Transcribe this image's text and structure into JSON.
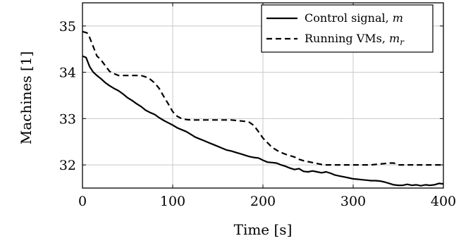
{
  "chart_data": {
    "type": "line",
    "title": "",
    "xlabel": "Time [s]",
    "ylabel": "Machines [1]",
    "xlim": [
      0,
      400
    ],
    "ylim": [
      31.5,
      35.5
    ],
    "xticks": [
      0,
      100,
      200,
      300,
      400
    ],
    "xtick_labels": [
      "0",
      "100",
      "200",
      "300",
      "400"
    ],
    "yticks": [
      32,
      33,
      34,
      35
    ],
    "ytick_labels": [
      "32",
      "33",
      "34",
      "35"
    ],
    "grid": true,
    "legend_position": "top-right",
    "series": [
      {
        "name": "Control signal, m",
        "legend_prefix": "Control signal, ",
        "legend_symbol": "m",
        "legend_subscript": "",
        "style": "solid",
        "color": "#000000",
        "x": [
          0,
          4,
          8,
          12,
          16,
          20,
          25,
          30,
          35,
          40,
          45,
          50,
          55,
          60,
          65,
          70,
          75,
          80,
          85,
          90,
          95,
          100,
          105,
          110,
          115,
          120,
          125,
          130,
          135,
          140,
          145,
          150,
          155,
          160,
          165,
          170,
          175,
          180,
          185,
          190,
          195,
          200,
          205,
          210,
          215,
          220,
          225,
          230,
          235,
          240,
          245,
          250,
          255,
          260,
          265,
          270,
          275,
          280,
          285,
          290,
          295,
          300,
          305,
          310,
          315,
          320,
          325,
          330,
          335,
          340,
          345,
          350,
          355,
          360,
          365,
          370,
          375,
          380,
          385,
          390,
          395,
          400
        ],
        "y": [
          34.35,
          34.32,
          34.12,
          34.0,
          33.93,
          33.87,
          33.78,
          33.71,
          33.65,
          33.6,
          33.53,
          33.45,
          33.39,
          33.32,
          33.26,
          33.18,
          33.13,
          33.09,
          33.02,
          32.96,
          32.91,
          32.86,
          32.8,
          32.76,
          32.72,
          32.66,
          32.6,
          32.56,
          32.52,
          32.48,
          32.44,
          32.4,
          32.36,
          32.32,
          32.3,
          32.27,
          32.24,
          32.21,
          32.18,
          32.16,
          32.15,
          32.1,
          32.06,
          32.05,
          32.04,
          32.0,
          31.97,
          31.93,
          31.9,
          31.92,
          31.86,
          31.85,
          31.87,
          31.85,
          31.83,
          31.85,
          31.82,
          31.78,
          31.76,
          31.74,
          31.72,
          31.7,
          31.69,
          31.68,
          31.67,
          31.66,
          31.66,
          31.65,
          31.63,
          31.6,
          31.57,
          31.56,
          31.56,
          31.58,
          31.56,
          31.57,
          31.55,
          31.57,
          31.56,
          31.57,
          31.6,
          31.59
        ]
      },
      {
        "name": "Running VMs, m_r",
        "legend_prefix": "Running VMs, ",
        "legend_symbol": "m",
        "legend_subscript": "r",
        "style": "dashed",
        "color": "#000000",
        "x": [
          0,
          5,
          8,
          12,
          16,
          20,
          25,
          30,
          35,
          40,
          45,
          50,
          55,
          60,
          65,
          70,
          75,
          80,
          85,
          90,
          95,
          100,
          105,
          110,
          115,
          120,
          125,
          130,
          135,
          140,
          145,
          150,
          155,
          160,
          165,
          170,
          175,
          180,
          185,
          190,
          195,
          200,
          205,
          210,
          215,
          220,
          225,
          230,
          235,
          240,
          245,
          250,
          255,
          260,
          265,
          270,
          280,
          290,
          300,
          310,
          320,
          330,
          335,
          340,
          345,
          350,
          360,
          370,
          380,
          390,
          400
        ],
        "y": [
          34.88,
          34.85,
          34.75,
          34.55,
          34.35,
          34.28,
          34.15,
          34.02,
          33.97,
          33.93,
          33.93,
          33.93,
          33.93,
          33.93,
          33.93,
          33.9,
          33.85,
          33.77,
          33.65,
          33.48,
          33.32,
          33.15,
          33.05,
          33.0,
          32.98,
          32.97,
          32.97,
          32.97,
          32.97,
          32.97,
          32.97,
          32.97,
          32.97,
          32.97,
          32.97,
          32.96,
          32.95,
          32.94,
          32.92,
          32.85,
          32.72,
          32.58,
          32.48,
          32.38,
          32.32,
          32.27,
          32.23,
          32.2,
          32.17,
          32.12,
          32.09,
          32.07,
          32.05,
          32.03,
          32.01,
          32.0,
          32.0,
          32.0,
          32.0,
          32.0,
          32.0,
          32.02,
          32.03,
          32.04,
          32.04,
          32.0,
          32.0,
          32.0,
          32.0,
          32.0,
          32.0
        ]
      }
    ]
  }
}
